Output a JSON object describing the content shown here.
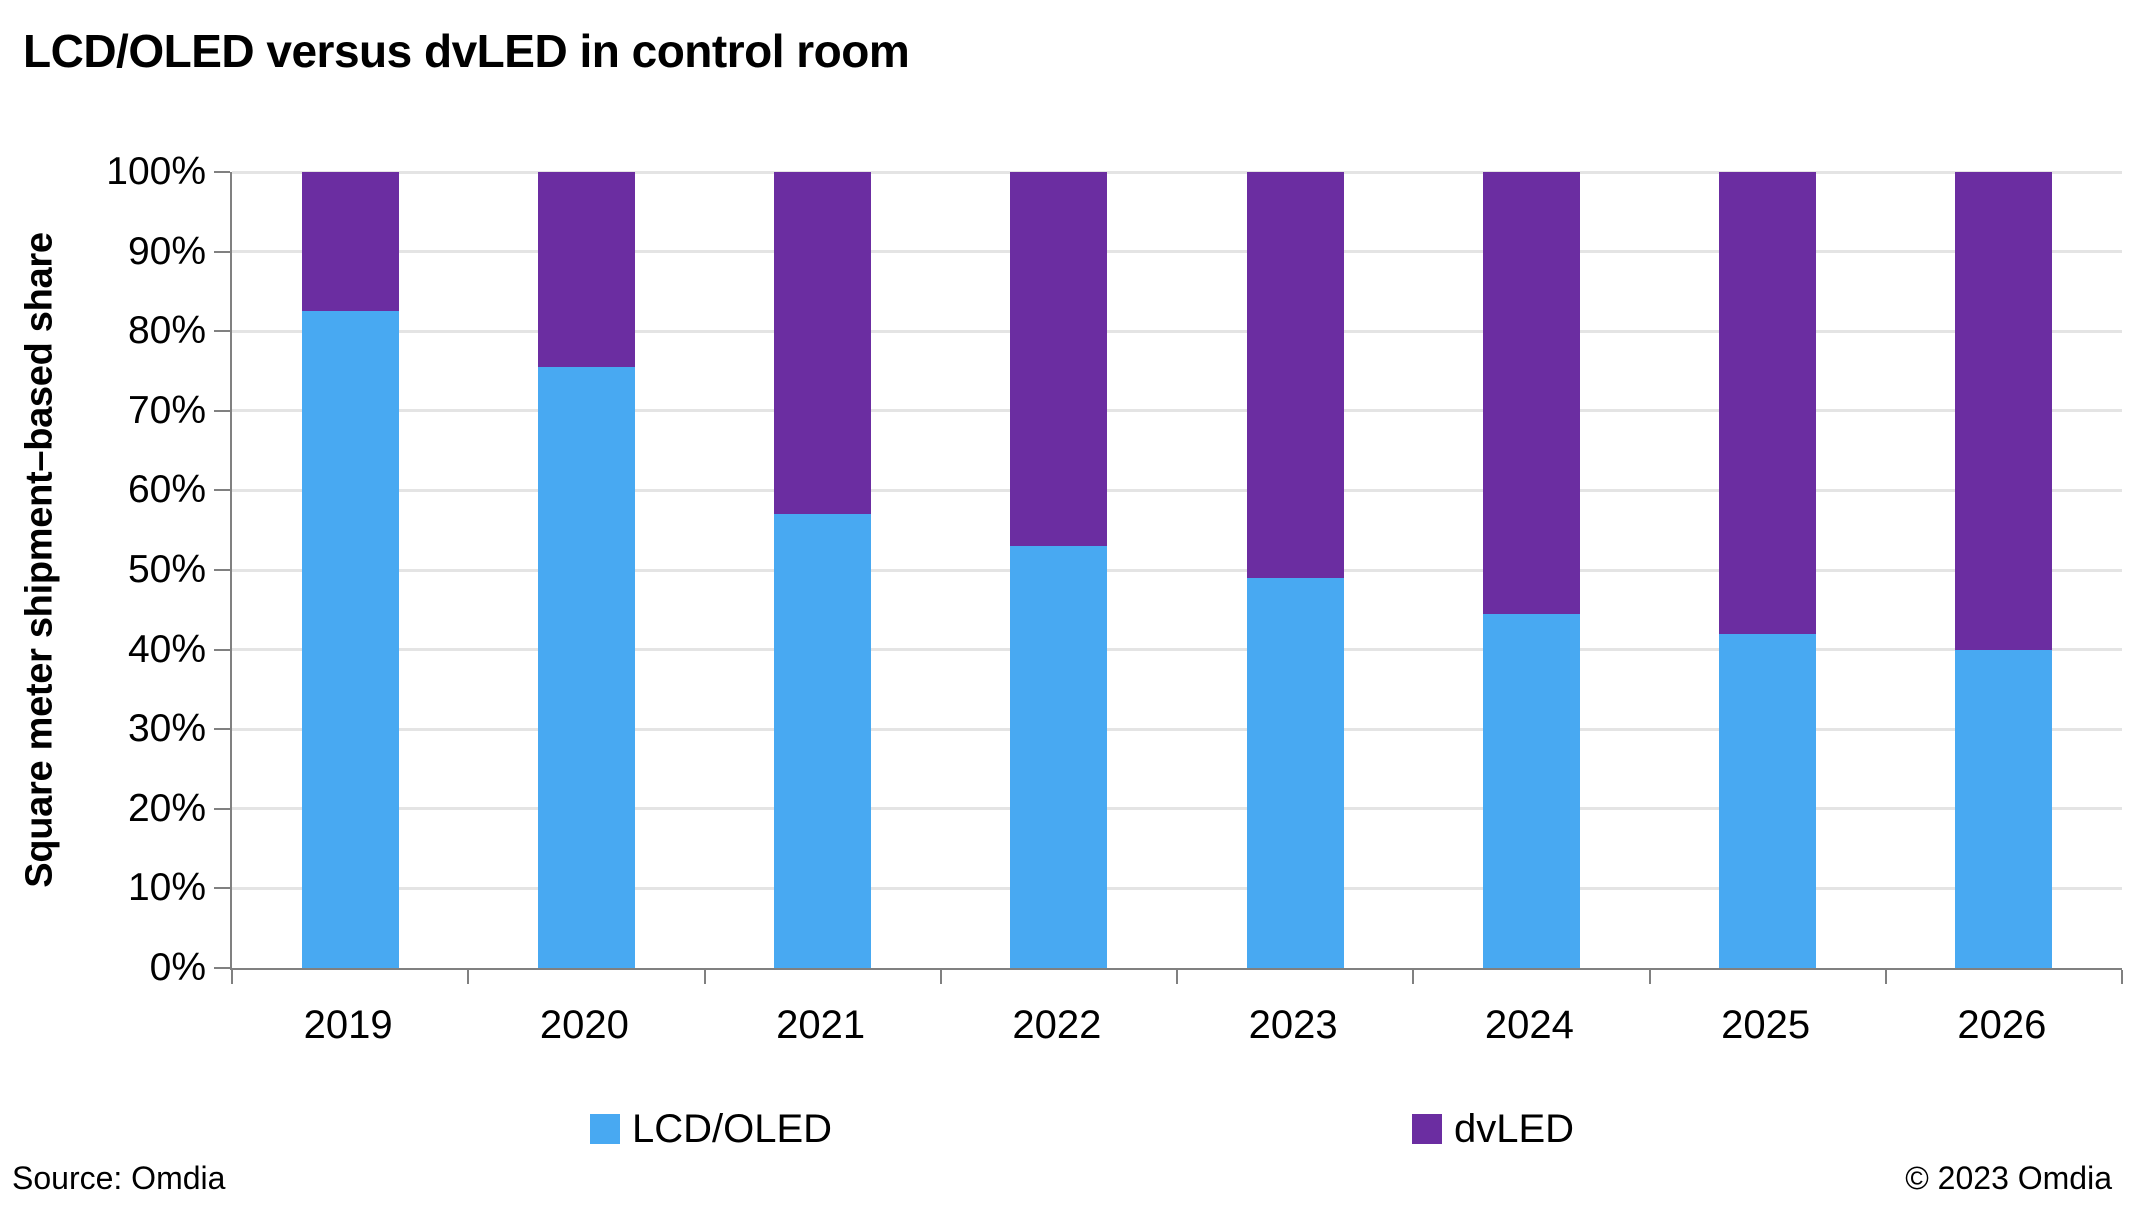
{
  "title": "LCD/OLED versus dvLED in control room",
  "footer": {
    "source": "Source: Omdia",
    "copyright": "© 2023 Omdia"
  },
  "colors": {
    "lcd_oled": "#48A9F2",
    "dvled": "#6B2DA1",
    "gridline": "#E4E4E4",
    "axis": "#808080",
    "background": "#FFFFFF",
    "text": "#000000"
  },
  "chart_data": {
    "type": "bar",
    "stacked": true,
    "title": "LCD/OLED versus dvLED in control room",
    "categories": [
      "2019",
      "2020",
      "2021",
      "2022",
      "2023",
      "2024",
      "2025",
      "2026"
    ],
    "series": [
      {
        "name": "LCD/OLED",
        "color": "#48A9F2",
        "values": [
          82.5,
          75.5,
          57,
          53,
          49,
          44.5,
          42,
          40
        ]
      },
      {
        "name": "dvLED",
        "color": "#6B2DA1",
        "values": [
          17.5,
          24.5,
          43,
          47,
          51,
          55.5,
          58,
          60
        ]
      }
    ],
    "xlabel": "",
    "ylabel": "Square meter shipment–based share",
    "ylim": [
      0,
      100
    ],
    "ytick_step": 10,
    "ytick_labels": [
      "0%",
      "10%",
      "20%",
      "30%",
      "40%",
      "50%",
      "60%",
      "70%",
      "80%",
      "90%",
      "100%"
    ],
    "grid": true,
    "legend_position": "bottom"
  }
}
